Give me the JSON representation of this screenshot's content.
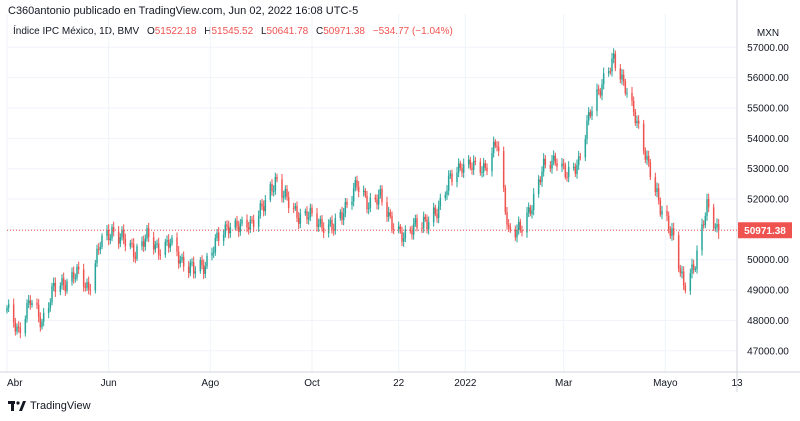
{
  "header": {
    "publish_line": "C360antonio publicado en TradingView.com, Jun 02, 2022 16:08 UTC-5"
  },
  "legend": {
    "symbol": "Índice IPC México, 1D, BMV",
    "open_key": "O",
    "open": "51522.18",
    "high_key": "H",
    "high": "51545.52",
    "low_key": "L",
    "low": "50641.78",
    "close_key": "C",
    "close": "50971.38",
    "change": "−534.77 (−1.04%)"
  },
  "footer": {
    "brand": "TradingView"
  },
  "colors": {
    "up": "#26a69a",
    "down": "#ef5350",
    "grid": "#f0f3fa",
    "price_line": "#ef5350"
  },
  "chart_data": {
    "type": "candlestick",
    "currency": "MXN",
    "last_price_label": "50971.38",
    "last_price": 50971.38,
    "y_ticks": [
      47000,
      48000,
      49000,
      50000,
      51000,
      52000,
      53000,
      54000,
      55000,
      56000,
      57000
    ],
    "y_tick_labels": [
      "47000.00",
      "48000.00",
      "49000.00",
      "50000.00",
      "51000.00",
      "52000.00",
      "53000.00",
      "54000.00",
      "55000.00",
      "56000.00",
      "57000.00"
    ],
    "ylim": [
      46300,
      57900
    ],
    "x_ticks": [
      "2021-04-01",
      "2021-06-01",
      "2021-08-01",
      "2021-10-01",
      "2021-11-22",
      "2022-01-01",
      "2022-03-01",
      "2022-05-01",
      "2022-06-13"
    ],
    "x_tick_labels": [
      "Abr",
      "Jun",
      "Ago",
      "Oct",
      "22",
      "2022",
      "Mar",
      "Mayo",
      "13"
    ],
    "xlim": [
      "2021-04-01",
      "2022-06-13"
    ],
    "series": [
      {
        "date": "2021-04-01",
        "close": 48300
      },
      {
        "date": "2021-04-08",
        "close": 47700
      },
      {
        "date": "2021-04-15",
        "close": 48600
      },
      {
        "date": "2021-04-22",
        "close": 48000
      },
      {
        "date": "2021-04-29",
        "close": 49000
      },
      {
        "date": "2021-05-06",
        "close": 49300
      },
      {
        "date": "2021-05-13",
        "close": 49500
      },
      {
        "date": "2021-05-20",
        "close": 49100
      },
      {
        "date": "2021-05-27",
        "close": 50500
      },
      {
        "date": "2021-06-03",
        "close": 51000
      },
      {
        "date": "2021-06-10",
        "close": 50600
      },
      {
        "date": "2021-06-17",
        "close": 50300
      },
      {
        "date": "2021-06-24",
        "close": 50700
      },
      {
        "date": "2021-07-01",
        "close": 50400
      },
      {
        "date": "2021-07-08",
        "close": 50500
      },
      {
        "date": "2021-07-15",
        "close": 50000
      },
      {
        "date": "2021-07-22",
        "close": 49600
      },
      {
        "date": "2021-07-29",
        "close": 49900
      },
      {
        "date": "2021-08-05",
        "close": 50600
      },
      {
        "date": "2021-08-12",
        "close": 51200
      },
      {
        "date": "2021-08-19",
        "close": 51000
      },
      {
        "date": "2021-08-26",
        "close": 51300
      },
      {
        "date": "2021-09-02",
        "close": 51700
      },
      {
        "date": "2021-09-09",
        "close": 52700
      },
      {
        "date": "2021-09-16",
        "close": 51900
      },
      {
        "date": "2021-09-23",
        "close": 51500
      },
      {
        "date": "2021-09-30",
        "close": 51400
      },
      {
        "date": "2021-10-07",
        "close": 51200
      },
      {
        "date": "2021-10-14",
        "close": 51000
      },
      {
        "date": "2021-10-21",
        "close": 51800
      },
      {
        "date": "2021-10-28",
        "close": 52400
      },
      {
        "date": "2021-11-04",
        "close": 51900
      },
      {
        "date": "2021-11-11",
        "close": 52000
      },
      {
        "date": "2021-11-18",
        "close": 51300
      },
      {
        "date": "2021-11-25",
        "close": 50600
      },
      {
        "date": "2021-12-02",
        "close": 51300
      },
      {
        "date": "2021-12-09",
        "close": 51100
      },
      {
        "date": "2021-12-16",
        "close": 51800
      },
      {
        "date": "2021-12-23",
        "close": 52600
      },
      {
        "date": "2021-12-30",
        "close": 53200
      },
      {
        "date": "2022-01-06",
        "close": 53000
      },
      {
        "date": "2022-01-13",
        "close": 53100
      },
      {
        "date": "2022-01-20",
        "close": 53800
      },
      {
        "date": "2022-01-27",
        "close": 51000
      },
      {
        "date": "2022-02-03",
        "close": 50900
      },
      {
        "date": "2022-02-10",
        "close": 51900
      },
      {
        "date": "2022-02-17",
        "close": 53000
      },
      {
        "date": "2022-02-24",
        "close": 53400
      },
      {
        "date": "2022-03-03",
        "close": 52700
      },
      {
        "date": "2022-03-10",
        "close": 53300
      },
      {
        "date": "2022-03-17",
        "close": 54800
      },
      {
        "date": "2022-03-24",
        "close": 55900
      },
      {
        "date": "2022-03-31",
        "close": 56500
      },
      {
        "date": "2022-04-07",
        "close": 55800
      },
      {
        "date": "2022-04-14",
        "close": 54400
      },
      {
        "date": "2022-04-21",
        "close": 53200
      },
      {
        "date": "2022-04-28",
        "close": 51600
      },
      {
        "date": "2022-05-05",
        "close": 51000
      },
      {
        "date": "2022-05-12",
        "close": 49000
      },
      {
        "date": "2022-05-19",
        "close": 50000
      },
      {
        "date": "2022-05-26",
        "close": 51700
      },
      {
        "date": "2022-06-02",
        "close": 50971.38
      }
    ]
  }
}
